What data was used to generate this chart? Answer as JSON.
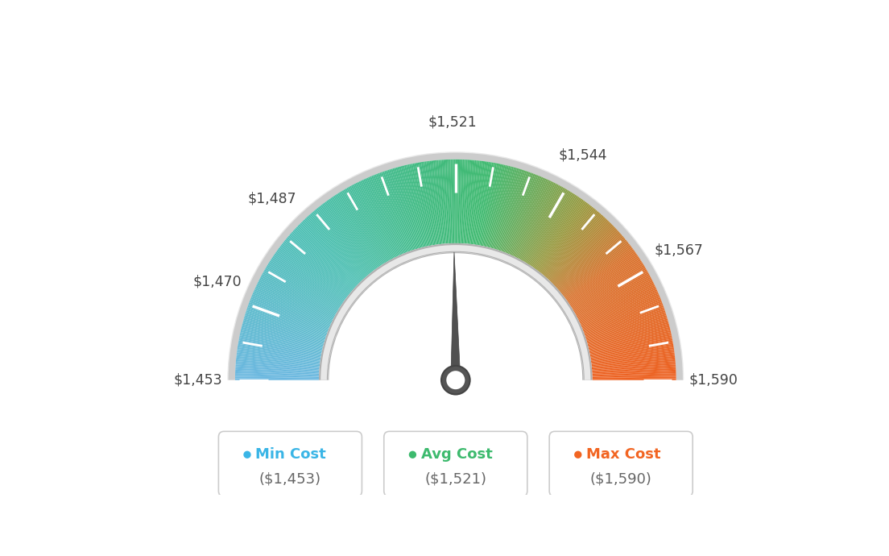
{
  "min_val": 1453,
  "max_val": 1590,
  "avg_val": 1521,
  "tick_labels": [
    "$1,453",
    "$1,470",
    "$1,487",
    "$1,521",
    "$1,544",
    "$1,567",
    "$1,590"
  ],
  "tick_values": [
    1453,
    1470,
    1487,
    1521,
    1544,
    1567,
    1590
  ],
  "legend": [
    {
      "label": "Min Cost",
      "sub": "($1,453)",
      "color": "#3ab5e6"
    },
    {
      "label": "Avg Cost",
      "sub": "($1,521)",
      "color": "#3dba6e"
    },
    {
      "label": "Max Cost",
      "sub": "($1,590)",
      "color": "#f26522"
    }
  ],
  "background_color": "#ffffff",
  "needle_value": 1521,
  "gradient_colors": [
    [
      0.0,
      [
        0.42,
        0.72,
        0.88
      ]
    ],
    [
      0.25,
      [
        0.3,
        0.75,
        0.7
      ]
    ],
    [
      0.45,
      [
        0.25,
        0.73,
        0.5
      ]
    ],
    [
      0.55,
      [
        0.25,
        0.73,
        0.44
      ]
    ],
    [
      0.7,
      [
        0.6,
        0.6,
        0.25
      ]
    ],
    [
      0.8,
      [
        0.85,
        0.45,
        0.18
      ]
    ],
    [
      1.0,
      [
        0.93,
        0.38,
        0.13
      ]
    ]
  ]
}
